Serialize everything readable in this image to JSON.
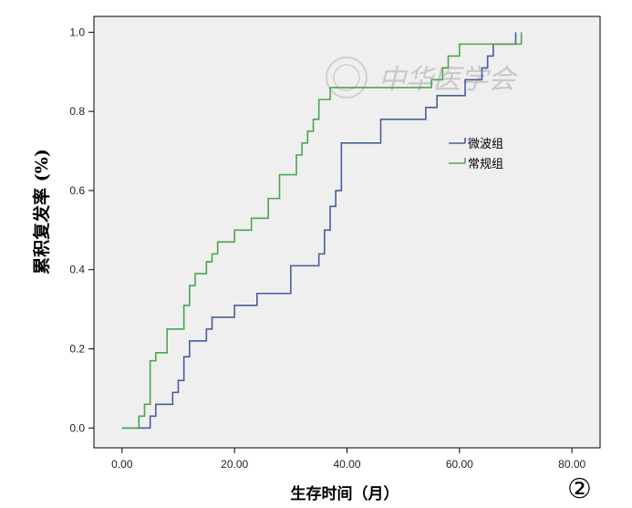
{
  "chart_data": {
    "type": "line",
    "title": "",
    "xlabel": "生存时间（月）",
    "ylabel": "累积复发率 (%)",
    "xlim": [
      -5,
      85
    ],
    "ylim": [
      -0.05,
      1.04
    ],
    "x_ticks": [
      0,
      20,
      40,
      60,
      80
    ],
    "x_tick_labels": [
      "0.00",
      "20.00",
      "40.00",
      "60.00",
      "80.00"
    ],
    "y_ticks": [
      0,
      0.2,
      0.4,
      0.6,
      0.8,
      1.0
    ],
    "y_tick_labels": [
      "0.0",
      "0.2",
      "0.4",
      "0.6",
      "0.8",
      "1.0"
    ],
    "grid": false,
    "legend_position": "right",
    "step": true,
    "series": [
      {
        "name": "微波组",
        "color": "#4a5d9c",
        "x": [
          0,
          5,
          6,
          9,
          10,
          11,
          12,
          15,
          16,
          17,
          20,
          24,
          30,
          35,
          36,
          37,
          38,
          39,
          46,
          54,
          55,
          56,
          57,
          60,
          61,
          62,
          64,
          65,
          66,
          67,
          68,
          70
        ],
        "y": [
          0,
          0.03,
          0.06,
          0.09,
          0.12,
          0.18,
          0.22,
          0.25,
          0.28,
          0.28,
          0.31,
          0.34,
          0.41,
          0.44,
          0.5,
          0.56,
          0.6,
          0.72,
          0.78,
          0.81,
          0.81,
          0.84,
          0.84,
          0.84,
          0.88,
          0.88,
          0.91,
          0.94,
          0.97,
          0.97,
          0.97,
          1.0
        ]
      },
      {
        "name": "常规组",
        "color": "#4aa650",
        "x": [
          0,
          3,
          4,
          5,
          6,
          8,
          11,
          12,
          13,
          15,
          16,
          17,
          20,
          23,
          26,
          28,
          31,
          32,
          33,
          34,
          35,
          37,
          55,
          57,
          58,
          60,
          70,
          71
        ],
        "y": [
          0,
          0.03,
          0.06,
          0.17,
          0.19,
          0.25,
          0.31,
          0.36,
          0.39,
          0.42,
          0.44,
          0.47,
          0.5,
          0.53,
          0.58,
          0.64,
          0.69,
          0.72,
          0.75,
          0.78,
          0.83,
          0.86,
          0.88,
          0.91,
          0.94,
          0.97,
          0.97,
          1.0
        ]
      }
    ]
  },
  "watermark": "中华医学会",
  "panel_label": "②"
}
